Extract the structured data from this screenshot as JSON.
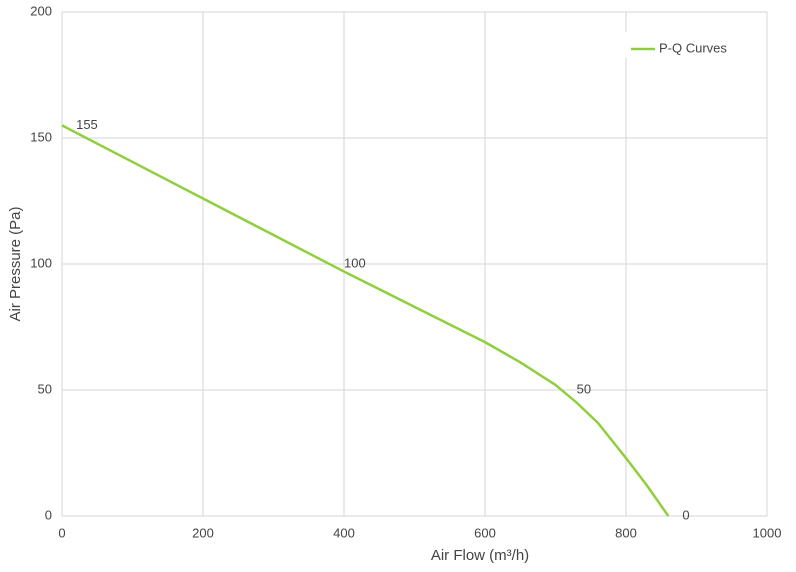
{
  "chart_data": {
    "type": "line",
    "x_label": "Air Flow  (m³/h)",
    "y_label": "Air Pressure  (Pa)",
    "x": [
      0,
      100,
      200,
      300,
      400,
      500,
      600,
      650,
      700,
      730,
      760,
      800,
      830,
      860
    ],
    "series": [
      {
        "name": "P-Q Curves",
        "color": "#8fcf3c",
        "values": [
          155,
          140.5,
          126,
          111.5,
          97,
          83,
          69,
          61,
          52,
          45,
          37,
          23,
          12,
          0
        ]
      }
    ],
    "annotations": [
      {
        "x": 20,
        "y": 155
      },
      {
        "x": 400,
        "y": 100
      },
      {
        "x": 730,
        "y": 50
      },
      {
        "x": 880,
        "y": 0
      }
    ],
    "xlim": [
      0,
      1000
    ],
    "xticks": [
      0,
      200,
      400,
      600,
      800,
      1000
    ],
    "ylim": [
      0,
      200
    ],
    "yticks": [
      0,
      50,
      100,
      150,
      200
    ],
    "grid": true,
    "legend": "top-right"
  }
}
